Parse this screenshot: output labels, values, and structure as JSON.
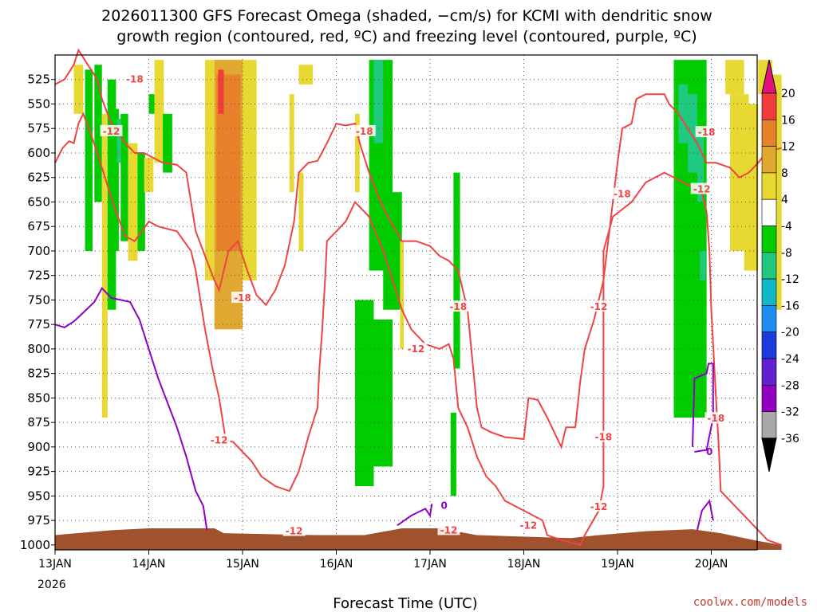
{
  "header": {
    "title_line1": "2026011300 GFS Forecast Omega (shaded, −cm/s) for KCMI with dendritic snow",
    "title_line2": "growth region (contoured, red, ºC) and freezing level (contoured, purple, ºC)"
  },
  "footer": {
    "xlabel": "Forecast Time (UTC)",
    "credit": "coolwx.com/models"
  },
  "colors": {
    "dgz_contour": "#ef4444",
    "freezing_contour": "#8f00c8",
    "terrain": "#a0522d",
    "grid": "#555555"
  },
  "chart_data": {
    "type": "heatmap",
    "x_axis": {
      "labels": [
        "13JAN",
        "14JAN",
        "15JAN",
        "16JAN",
        "17JAN",
        "18JAN",
        "19JAN",
        "20JAN"
      ],
      "year_label": "2026",
      "range_days": [
        0,
        7.75
      ]
    },
    "y_axis": {
      "ticks": [
        525,
        550,
        575,
        600,
        625,
        650,
        675,
        700,
        725,
        750,
        775,
        800,
        825,
        850,
        875,
        900,
        925,
        950,
        975,
        1000
      ],
      "range_hpa": [
        500,
        1005
      ],
      "grid": true
    },
    "colorbar": {
      "labels": [
        "20",
        "16",
        "12",
        "8",
        "4",
        "-4",
        "-8",
        "-12",
        "-16",
        "-20",
        "-24",
        "-28",
        "-32",
        "-36"
      ],
      "bins": [
        {
          "color": "#e8e8e8",
          "lo": -4,
          "hi": 4
        },
        {
          "color": "#e8d832",
          "lo": 4,
          "hi": 8
        },
        {
          "color": "#e0a830",
          "lo": 8,
          "hi": 12
        },
        {
          "color": "#e8822a",
          "lo": 12,
          "hi": 16
        },
        {
          "color": "#f03c3c",
          "lo": 16,
          "hi": 20
        },
        {
          "color": "#00cc00",
          "lo": -8,
          "hi": -4
        },
        {
          "color": "#20c880",
          "lo": -12,
          "hi": -8
        },
        {
          "color": "#10b8c8",
          "lo": -16,
          "hi": -12
        },
        {
          "color": "#1e8cf0",
          "lo": -20,
          "hi": -16
        },
        {
          "color": "#1e3cdc",
          "lo": -24,
          "hi": -20
        },
        {
          "color": "#6020d0",
          "lo": -28,
          "hi": -24
        },
        {
          "color": "#9000c0",
          "lo": -32,
          "hi": -28
        },
        {
          "color": "#a8a8a8",
          "lo": -36,
          "hi": -32
        }
      ],
      "top_arrow_color": "#e0147a",
      "bottom_arrow_color": "#000000"
    },
    "contour_labels_dgz": [
      "-18",
      "-12",
      "-18",
      "-12",
      "-18",
      "-18",
      "-12",
      "-18",
      "-12",
      "-18",
      "-12",
      "-18",
      "-12",
      "-12",
      "-18",
      "-12",
      "-12"
    ],
    "contour_labels_freezing": [
      "0",
      "0"
    ],
    "dgz_contours": [
      {
        "name": "-12",
        "points": [
          [
            0,
            610
          ],
          [
            0.08,
            595
          ],
          [
            0.15,
            588
          ],
          [
            0.2,
            590
          ],
          [
            0.25,
            570
          ],
          [
            0.3,
            560
          ],
          [
            0.38,
            580
          ],
          [
            0.45,
            600
          ],
          [
            0.55,
            630
          ],
          [
            0.65,
            660
          ],
          [
            0.75,
            685
          ],
          [
            0.85,
            690
          ],
          [
            1.0,
            670
          ],
          [
            1.1,
            675
          ],
          [
            1.3,
            680
          ],
          [
            1.45,
            700
          ],
          [
            1.5,
            720
          ],
          [
            1.55,
            750
          ],
          [
            1.6,
            780
          ],
          [
            1.68,
            820
          ],
          [
            1.75,
            850
          ],
          [
            1.8,
            880
          ],
          [
            1.82,
            893
          ],
          [
            1.9,
            895
          ],
          [
            2.0,
            905
          ],
          [
            2.1,
            915
          ],
          [
            2.2,
            930
          ],
          [
            2.35,
            940
          ],
          [
            2.5,
            945
          ],
          [
            2.6,
            925
          ],
          [
            2.7,
            890
          ],
          [
            2.8,
            860
          ],
          [
            2.82,
            820
          ],
          [
            2.85,
            780
          ],
          [
            2.88,
            730
          ],
          [
            2.9,
            690
          ],
          [
            3.0,
            680
          ],
          [
            3.1,
            670
          ],
          [
            3.2,
            650
          ],
          [
            3.35,
            665
          ],
          [
            3.5,
            700
          ],
          [
            3.6,
            730
          ],
          [
            3.7,
            760
          ],
          [
            3.8,
            780
          ],
          [
            3.95,
            795
          ],
          [
            4.1,
            800
          ],
          [
            4.2,
            795
          ],
          [
            4.25,
            810
          ],
          [
            4.3,
            860
          ],
          [
            4.4,
            880
          ],
          [
            4.5,
            910
          ],
          [
            4.6,
            930
          ],
          [
            4.7,
            940
          ],
          [
            4.8,
            955
          ],
          [
            5.0,
            965
          ],
          [
            5.2,
            975
          ],
          [
            5.25,
            990
          ],
          [
            5.4,
            995
          ],
          [
            5.6,
            1000
          ],
          [
            5.65,
            990
          ],
          [
            5.8,
            965
          ],
          [
            5.85,
            940
          ],
          [
            5.85,
            850
          ],
          [
            5.85,
            780
          ],
          [
            5.85,
            700
          ],
          [
            5.95,
            665
          ],
          [
            6.15,
            650
          ],
          [
            6.3,
            630
          ],
          [
            6.5,
            620
          ],
          [
            6.6,
            625
          ],
          [
            6.7,
            630
          ],
          [
            6.9,
            640
          ],
          [
            6.95,
            660
          ],
          [
            6.98,
            700
          ],
          [
            7.0,
            760
          ],
          [
            7.05,
            850
          ],
          [
            7.08,
            900
          ],
          [
            7.1,
            945
          ],
          [
            7.2,
            955
          ],
          [
            7.4,
            975
          ],
          [
            7.5,
            985
          ],
          [
            7.6,
            995
          ],
          [
            7.75,
            1000
          ]
        ]
      },
      {
        "name": "-18",
        "points": [
          [
            0,
            530
          ],
          [
            0.1,
            525
          ],
          [
            0.2,
            510
          ],
          [
            0.25,
            495
          ],
          [
            0.35,
            510
          ],
          [
            0.45,
            525
          ],
          [
            0.5,
            545
          ],
          [
            0.6,
            570
          ],
          [
            0.75,
            590
          ],
          [
            0.85,
            600
          ],
          [
            0.95,
            600
          ],
          [
            1.15,
            610
          ],
          [
            1.3,
            612
          ],
          [
            1.4,
            620
          ],
          [
            1.45,
            650
          ],
          [
            1.5,
            680
          ],
          [
            1.6,
            705
          ],
          [
            1.7,
            730
          ],
          [
            1.75,
            740
          ],
          [
            1.8,
            720
          ],
          [
            1.85,
            700
          ],
          [
            1.95,
            690
          ],
          [
            2.05,
            720
          ],
          [
            2.15,
            745
          ],
          [
            2.25,
            755
          ],
          [
            2.35,
            740
          ],
          [
            2.45,
            715
          ],
          [
            2.55,
            670
          ],
          [
            2.6,
            620
          ],
          [
            2.7,
            610
          ],
          [
            2.8,
            608
          ],
          [
            2.9,
            590
          ],
          [
            3.0,
            570
          ],
          [
            3.1,
            572
          ],
          [
            3.2,
            570
          ],
          [
            3.25,
            590
          ],
          [
            3.35,
            620
          ],
          [
            3.45,
            645
          ],
          [
            3.55,
            665
          ],
          [
            3.7,
            690
          ],
          [
            3.85,
            690
          ],
          [
            4.0,
            695
          ],
          [
            4.1,
            705
          ],
          [
            4.2,
            710
          ],
          [
            4.3,
            720
          ],
          [
            4.4,
            760
          ],
          [
            4.5,
            860
          ],
          [
            4.55,
            880
          ],
          [
            4.65,
            885
          ],
          [
            4.8,
            890
          ],
          [
            5.0,
            892
          ],
          [
            5.05,
            850
          ],
          [
            5.15,
            852
          ],
          [
            5.25,
            870
          ],
          [
            5.35,
            890
          ],
          [
            5.4,
            900
          ],
          [
            5.45,
            880
          ],
          [
            5.55,
            880
          ],
          [
            5.6,
            835
          ],
          [
            5.65,
            800
          ],
          [
            5.75,
            770
          ],
          [
            5.85,
            730
          ],
          [
            5.95,
            650
          ],
          [
            6.0,
            610
          ],
          [
            6.05,
            575
          ],
          [
            6.15,
            570
          ],
          [
            6.2,
            545
          ],
          [
            6.3,
            540
          ],
          [
            6.4,
            540
          ],
          [
            6.5,
            540
          ],
          [
            6.55,
            550
          ],
          [
            6.65,
            560
          ],
          [
            6.75,
            575
          ],
          [
            6.85,
            590
          ],
          [
            6.95,
            610
          ],
          [
            7.05,
            610
          ],
          [
            7.2,
            615
          ],
          [
            7.3,
            625
          ],
          [
            7.4,
            620
          ],
          [
            7.5,
            610
          ],
          [
            7.6,
            598
          ],
          [
            7.75,
            595
          ]
        ]
      }
    ],
    "freezing_contour": [
      {
        "name": "0",
        "points": [
          [
            0,
            775
          ],
          [
            0.1,
            778
          ],
          [
            0.2,
            772
          ],
          [
            0.3,
            763
          ],
          [
            0.42,
            752
          ],
          [
            0.5,
            738
          ],
          [
            0.6,
            748
          ],
          [
            0.7,
            750
          ],
          [
            0.8,
            752
          ],
          [
            0.9,
            770
          ],
          [
            1.0,
            800
          ],
          [
            1.1,
            830
          ],
          [
            1.2,
            855
          ],
          [
            1.3,
            880
          ],
          [
            1.4,
            910
          ],
          [
            1.5,
            945
          ],
          [
            1.58,
            960
          ],
          [
            1.62,
            985
          ]
        ]
      }
    ]
  }
}
